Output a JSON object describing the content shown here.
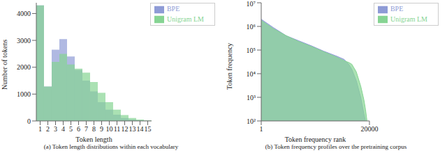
{
  "chart_data": [
    {
      "type": "bar",
      "caption": "(a) Token length distributions within each vocabulary",
      "x_label": "Token length",
      "y_label": "Number of tokens",
      "categories": [
        1,
        2,
        3,
        4,
        5,
        6,
        7,
        8,
        9,
        10,
        11,
        12,
        13,
        14,
        15
      ],
      "series": [
        {
          "name": "BPE",
          "color": "#8e9bd6",
          "values": [
            4300,
            1280,
            2650,
            3050,
            2400,
            1900,
            1500,
            1100,
            700,
            420,
            230,
            110,
            50,
            20,
            8
          ]
        },
        {
          "name": "Unigram LM",
          "color": "#86d493",
          "values": [
            4300,
            1280,
            2200,
            2500,
            2100,
            1950,
            1800,
            1450,
            1050,
            700,
            420,
            220,
            110,
            50,
            20
          ]
        }
      ],
      "ylim": [
        0,
        4400
      ],
      "yticks": [
        0,
        1000,
        2000,
        3000,
        4000
      ],
      "grid": false,
      "legend": "upper right"
    },
    {
      "type": "area",
      "caption": "(b) Token frequency profiles over the pretraining corpus",
      "x_label": "Token frequency rank",
      "y_label": "Token frequency",
      "x": [
        1,
        3,
        10,
        30,
        100,
        300,
        1000,
        2000,
        3000,
        4000,
        6000,
        9000,
        12000,
        14000,
        16000
      ],
      "series": [
        {
          "name": "BPE",
          "color": "#8e9bd6",
          "values": [
            2000000,
            900000,
            400000,
            250000,
            150000,
            90000,
            55000,
            40000,
            25000,
            15000,
            5000,
            1000,
            200,
            100,
            null
          ]
        },
        {
          "name": "Unigram LM",
          "color": "#86d493",
          "values": [
            1800000,
            800000,
            400000,
            230000,
            140000,
            85000,
            50000,
            35000,
            30000,
            25000,
            12000,
            3000,
            800,
            300,
            100
          ]
        }
      ],
      "log": true,
      "xlim": [
        1,
        20000
      ],
      "xticks": [
        1,
        20000
      ],
      "ylim": [
        100,
        10000000
      ],
      "yticks": [
        {
          "value": 100,
          "label": "10²"
        },
        {
          "value": 1000,
          "label": "10³"
        },
        {
          "value": 10000,
          "label": "10⁴"
        },
        {
          "value": 100000,
          "label": "10⁵"
        },
        {
          "value": 1000000,
          "label": "10⁶"
        },
        {
          "value": 10000000,
          "label": "10⁷"
        }
      ],
      "grid": false,
      "legend": "upper right"
    }
  ]
}
